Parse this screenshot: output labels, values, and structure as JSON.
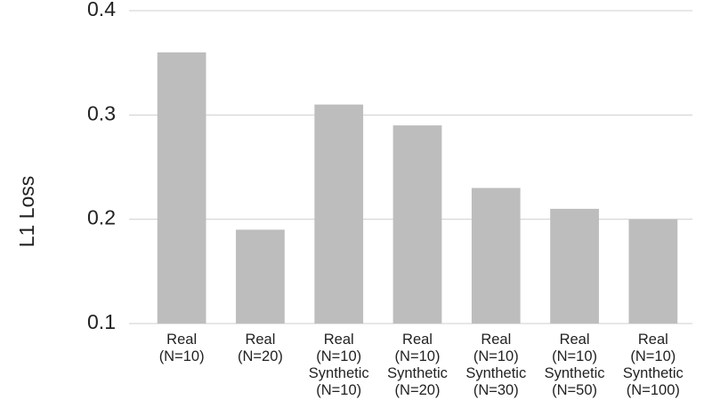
{
  "chart_data": {
    "type": "bar",
    "y_label": "L1 Loss",
    "categories": [
      "Real\n(N=10)",
      "Real\n(N=20)",
      "Real\n(N=10)\nSynthetic\n(N=10)",
      "Real\n(N=10)\nSynthetic\n(N=20)",
      "Real\n(N=10)\nSynthetic\n(N=30)",
      "Real\n(N=10)\nSynthetic\n(N=50)",
      "Real\n(N=10)\nSynthetic\n(N=100)"
    ],
    "values": [
      0.36,
      0.19,
      0.31,
      0.29,
      0.23,
      0.21,
      0.2
    ],
    "color": "#bdbdbd",
    "ylim": [
      0.1,
      0.4
    ],
    "yticks": [
      0.1,
      0.2,
      0.3,
      0.4
    ],
    "grid": true
  }
}
